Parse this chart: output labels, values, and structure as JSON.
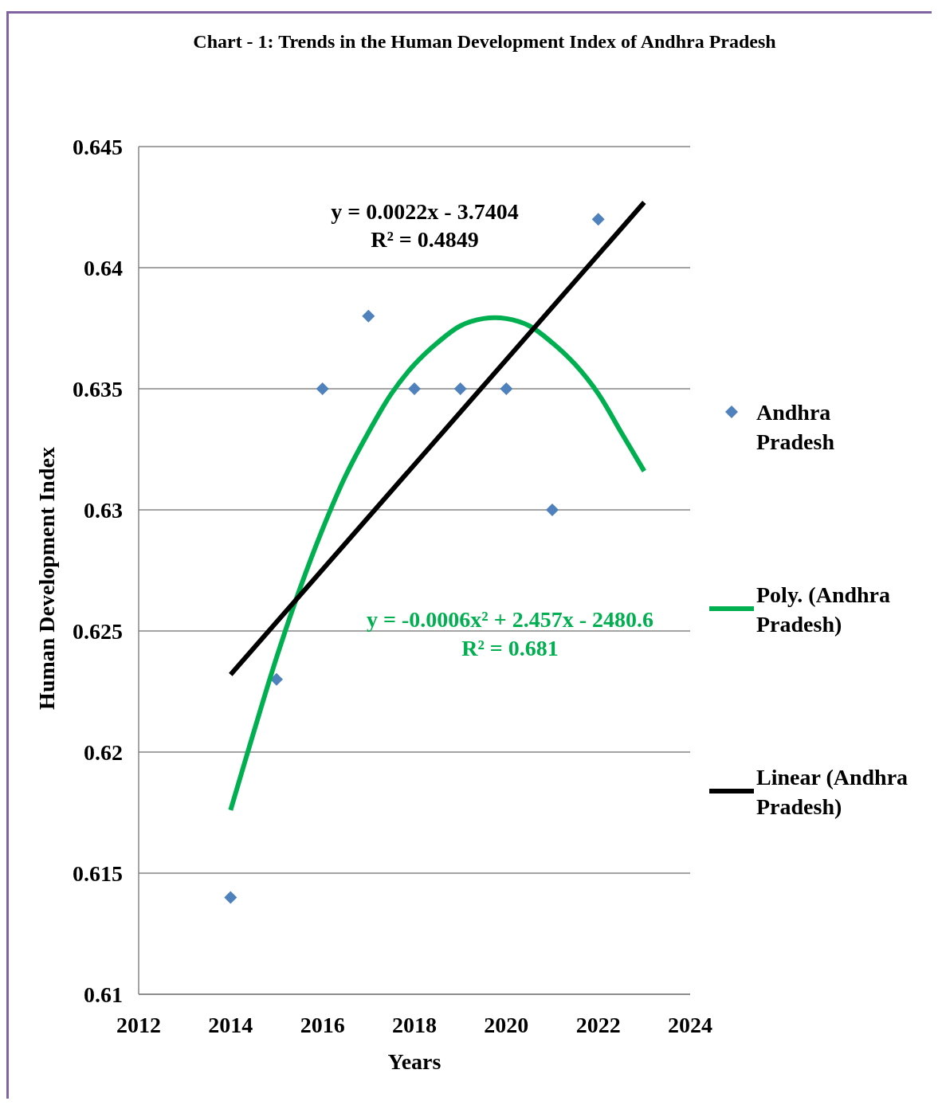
{
  "chart_data": {
    "type": "scatter",
    "title": "Chart - 1: Trends in the Human Development Index of Andhra Pradesh",
    "xlabel": "Years",
    "ylabel": "Human Development Index",
    "xlim": [
      2012,
      2024
    ],
    "xticks": [
      2012,
      2014,
      2016,
      2018,
      2020,
      2022,
      2024
    ],
    "ylim": [
      0.61,
      0.645
    ],
    "yticks": [
      {
        "value": 0.61,
        "label": "0.61"
      },
      {
        "value": 0.615,
        "label": "0.615"
      },
      {
        "value": 0.62,
        "label": "0.62"
      },
      {
        "value": 0.625,
        "label": "0.625"
      },
      {
        "value": 0.63,
        "label": "0.63"
      },
      {
        "value": 0.635,
        "label": "0.635"
      },
      {
        "value": 0.64,
        "label": "0.64"
      },
      {
        "value": 0.645,
        "label": "0.645"
      }
    ],
    "grid": "y",
    "legend": "right",
    "line_style": "solid",
    "series": [
      {
        "name": "Andhra Pradesh",
        "marker": "diamond",
        "color": "#4f81bd",
        "x": [
          2014,
          2015,
          2016,
          2017,
          2018,
          2019,
          2020,
          2021,
          2022
        ],
        "values": [
          0.614,
          0.623,
          0.635,
          0.638,
          0.635,
          0.635,
          0.635,
          0.63,
          0.642
        ]
      },
      {
        "name": "Poly. (Andhra Pradesh)",
        "type": "line",
        "marker": "none",
        "color": "#00b050",
        "x": [
          2014,
          2014.5,
          2015,
          2015.5,
          2016,
          2016.5,
          2017,
          2017.5,
          2018,
          2018.5,
          2019,
          2019.5,
          2020,
          2020.5,
          2021,
          2021.5,
          2022,
          2022.5,
          2023
        ],
        "values": [
          0.6176,
          0.6208,
          0.6239,
          0.6267,
          0.6292,
          0.6314,
          0.6332,
          0.6348,
          0.636,
          0.6369,
          0.6376,
          0.6379,
          0.6379,
          0.6376,
          0.6369,
          0.636,
          0.6348,
          0.6332,
          0.6316
        ]
      },
      {
        "name": "Linear (Andhra Pradesh)",
        "type": "line",
        "marker": "none",
        "color": "#000000",
        "x": [
          2014,
          2023
        ],
        "values": [
          0.6232,
          0.6427
        ]
      }
    ],
    "annotations": [
      "y = 0.0022x - 3.7404",
      "R² = 0.4849",
      "y = -0.0006x² + 2.457x - 2480.6",
      "R² = 0.681"
    ]
  }
}
